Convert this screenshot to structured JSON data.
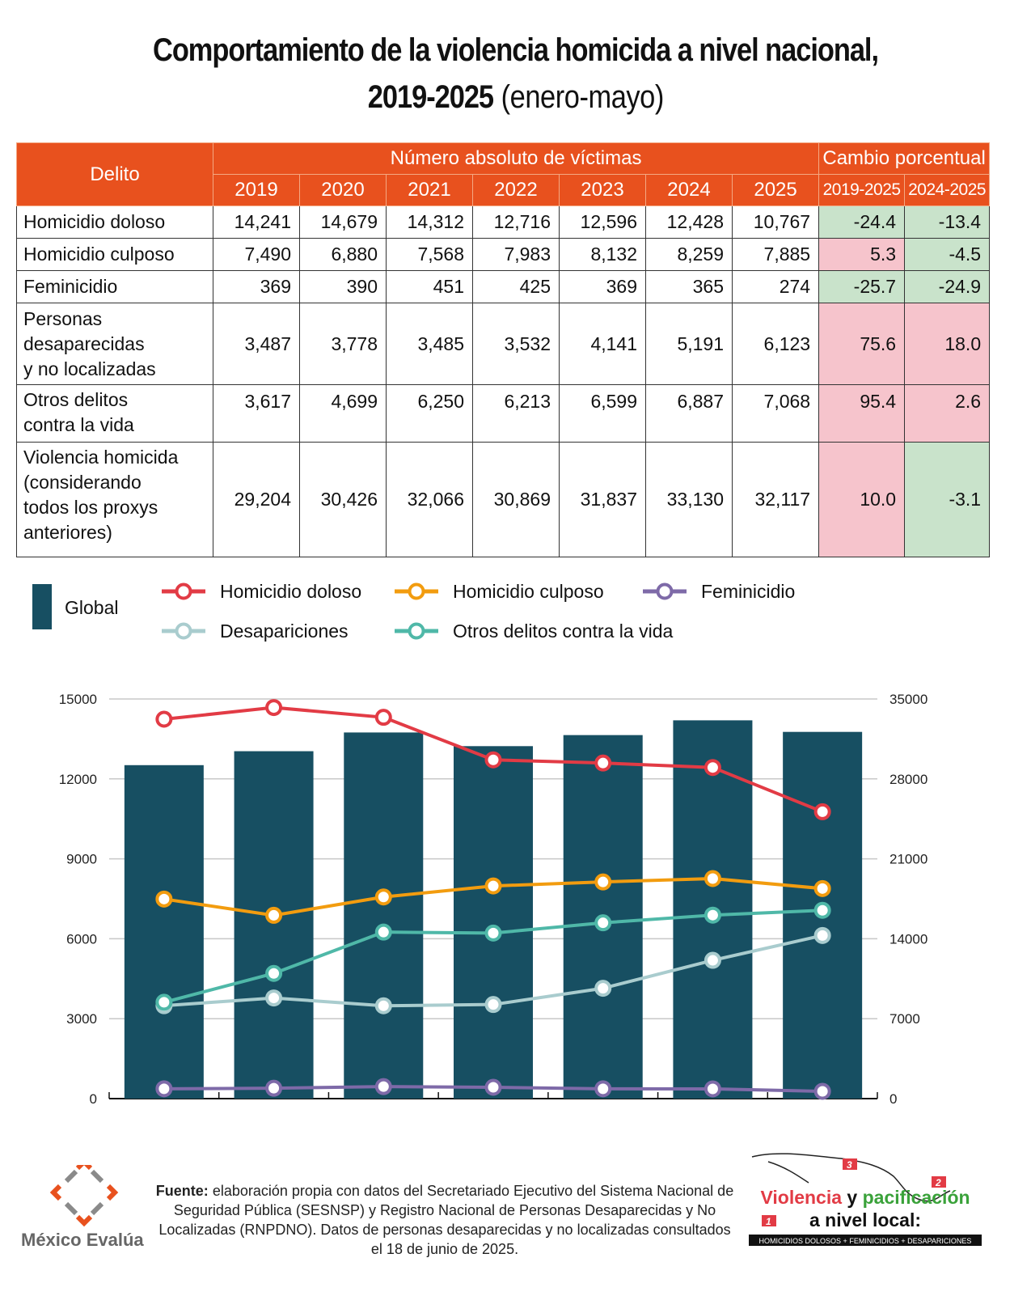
{
  "title": {
    "line1": "Comportamiento de la violencia homicida a nivel nacional,",
    "line2_bold": "2019-2025",
    "line2_light": "(enero-mayo)"
  },
  "table": {
    "header": {
      "delito": "Delito",
      "absolute_group": "Número absoluto de víctimas",
      "percent_group": "Cambio porcentual",
      "years": [
        "2019",
        "2020",
        "2021",
        "2022",
        "2023",
        "2024",
        "2025"
      ],
      "percent_cols": [
        "2019-2025",
        "2024-2025"
      ]
    },
    "rows": [
      {
        "name": "Homicidio doloso",
        "values": [
          "14,241",
          "14,679",
          "14,312",
          "12,716",
          "12,596",
          "12,428",
          "10,767"
        ],
        "change": [
          "-24.4",
          "-13.4"
        ]
      },
      {
        "name": "Homicidio culposo",
        "values": [
          "7,490",
          "6,880",
          "7,568",
          "7,983",
          "8,132",
          "8,259",
          "7,885"
        ],
        "change": [
          "5.3",
          "-4.5"
        ]
      },
      {
        "name": "Feminicidio",
        "values": [
          "369",
          "390",
          "451",
          "425",
          "369",
          "365",
          "274"
        ],
        "change": [
          "-25.7",
          "-24.9"
        ]
      },
      {
        "name": "Personas desaparecidas y no localizadas",
        "values": [
          "3,487",
          "3,778",
          "3,485",
          "3,532",
          "4,141",
          "5,191",
          "6,123"
        ],
        "change": [
          "75.6",
          "18.0"
        ]
      },
      {
        "name": "Otros delitos contra la vida",
        "values": [
          "3,617",
          "4,699",
          "6,250",
          "6,213",
          "6,599",
          "6,887",
          "7,068"
        ],
        "change": [
          "95.4",
          "2.6"
        ]
      },
      {
        "name": "Violencia homicida (considerando todos los proxys anteriores)",
        "values": [
          "29,204",
          "30,426",
          "32,066",
          "30,869",
          "31,837",
          "33,130",
          "32,117"
        ],
        "change": [
          "10.0",
          "-3.1"
        ]
      }
    ],
    "colors": {
      "header_bg": "#e8511e",
      "increase_bg": "#f6c4cc",
      "decrease_bg": "#c9e3cb"
    }
  },
  "legend": {
    "global": "Global",
    "items": [
      {
        "label": "Homicidio doloso",
        "color": "#e23b45"
      },
      {
        "label": "Homicidio culposo",
        "color": "#f29c0f"
      },
      {
        "label": "Feminicidio",
        "color": "#7e6aa8"
      },
      {
        "label": "Desapariciones",
        "color": "#a9ccce"
      },
      {
        "label": "Otros delitos contra la vida",
        "color": "#4fb8a8"
      }
    ]
  },
  "chart_data": {
    "type": "bar+line",
    "title": "Comportamiento de la violencia homicida a nivel nacional, 2019-2025 (enero-mayo)",
    "categories": [
      "2019",
      "2020",
      "2021",
      "2022",
      "2023",
      "2024",
      "2025"
    ],
    "bars": {
      "name": "Global",
      "axis": "right",
      "color": "#174f62",
      "values": [
        29204,
        30426,
        32066,
        30869,
        31837,
        33130,
        32117
      ]
    },
    "series": [
      {
        "name": "Homicidio doloso",
        "axis": "left",
        "color": "#e23b45",
        "values": [
          14241,
          14679,
          14312,
          12716,
          12596,
          12428,
          10767
        ]
      },
      {
        "name": "Homicidio culposo",
        "axis": "left",
        "color": "#f29c0f",
        "values": [
          7490,
          6880,
          7568,
          7983,
          8132,
          8259,
          7885
        ]
      },
      {
        "name": "Feminicidio",
        "axis": "left",
        "color": "#7e6aa8",
        "values": [
          369,
          390,
          451,
          425,
          369,
          365,
          274
        ]
      },
      {
        "name": "Desapariciones",
        "axis": "left",
        "color": "#a9ccce",
        "values": [
          3487,
          3778,
          3485,
          3532,
          4141,
          5191,
          6123
        ]
      },
      {
        "name": "Otros delitos contra la vida",
        "axis": "left",
        "color": "#4fb8a8",
        "values": [
          3617,
          4699,
          6250,
          6213,
          6599,
          6887,
          7068
        ]
      }
    ],
    "left_axis": {
      "ylim": [
        0,
        15000
      ],
      "ticks": [
        "0",
        "3000",
        "6000",
        "9000",
        "12000",
        "15000"
      ]
    },
    "right_axis": {
      "ylim": [
        0,
        35000
      ],
      "ticks": [
        "0",
        "7000",
        "14000",
        "21000",
        "28000",
        "35000"
      ]
    },
    "xlabel": "",
    "ylabel": "",
    "grid": true,
    "legend_position": "top"
  },
  "footer": {
    "source_label": "Fuente:",
    "source_text": "elaboración propia con datos del Secretariado Ejecutivo del Sistema Nacional de Seguridad Pública (SESNSP) y Registro Nacional de Personas Desaparecidas y No Localizadas (RNPDNO). Datos de personas desaparecidas y no localizadas consultados el 18 de junio de 2025.",
    "left_logo_text": "México Evalúa",
    "right_logo": {
      "word1": "Violencia",
      "word2": "y",
      "word3": "pacificación",
      "line2": "a nivel local:",
      "strip": "HOMICIDIOS DOLOSOS + FEMINICIDIOS + DESAPARICIONES",
      "badge1": "1",
      "badge2": "2",
      "badge3": "3"
    }
  }
}
